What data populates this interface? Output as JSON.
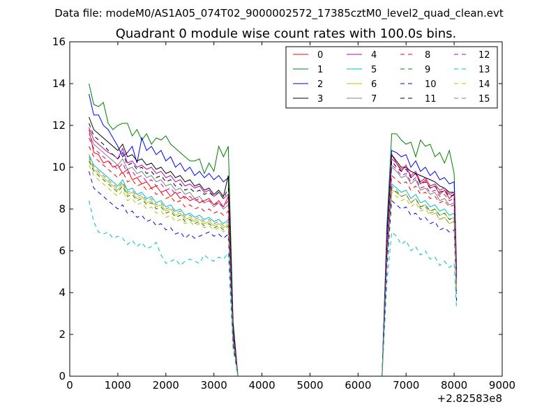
{
  "chart_data": {
    "type": "line",
    "suptitle": "Data file: modeM0/AS1A05_074T02_9000002572_17385cztM0_level2_quad_clean.evt",
    "title": "Quadrant 0 module wise count rates with 100.0s bins.",
    "xlabel": "",
    "ylabel": "",
    "x_offset_label": "+2.82583e8",
    "xlim": [
      0,
      9000
    ],
    "ylim": [
      0,
      16
    ],
    "x_ticks": [
      0,
      1000,
      2000,
      3000,
      4000,
      5000,
      6000,
      7000,
      8000,
      9000
    ],
    "y_ticks": [
      0,
      2,
      4,
      6,
      8,
      10,
      12,
      14,
      16
    ],
    "grid": false,
    "legend_position": "top-right",
    "legend_columns": 4,
    "x_segment1": [
      400,
      500,
      600,
      700,
      800,
      900,
      1000,
      1100,
      1200,
      1300,
      1400,
      1500,
      1600,
      1700,
      1800,
      1900,
      2000,
      2100,
      2200,
      2300,
      2400,
      2500,
      2600,
      2700,
      2800,
      2900,
      3000,
      3100,
      3200,
      3300,
      3400,
      3500
    ],
    "x_segment2": [
      6500,
      6600,
      6700,
      6800,
      6900,
      7000,
      7100,
      7200,
      7300,
      7400,
      7500,
      7600,
      7700,
      7800,
      7900,
      8000,
      8050
    ],
    "series": [
      {
        "name": "0",
        "color": "#ff0000",
        "dash": "solid",
        "values1": [
          11.8,
          10.7,
          10.6,
          10.2,
          10.3,
          10.0,
          10.1,
          9.7,
          9.9,
          9.4,
          9.5,
          9.2,
          9.3,
          9.0,
          9.1,
          8.8,
          8.9,
          8.6,
          8.8,
          8.5,
          8.6,
          8.4,
          8.5,
          8.3,
          8.4,
          8.5,
          8.2,
          8.4,
          8.1,
          8.6,
          2.0,
          0
        ],
        "values2": [
          0,
          6.5,
          10.6,
          10.2,
          9.8,
          10.1,
          9.5,
          9.7,
          9.2,
          9.4,
          9.0,
          9.1,
          8.7,
          8.9,
          8.5,
          8.7,
          4.8
        ]
      },
      {
        "name": "1",
        "color": "#008000",
        "dash": "solid",
        "values1": [
          14.0,
          13.0,
          12.9,
          13.1,
          12.1,
          11.8,
          12.0,
          12.1,
          12.1,
          11.5,
          11.8,
          11.3,
          11.6,
          11.1,
          11.4,
          11.3,
          11.5,
          11.1,
          10.9,
          10.7,
          10.5,
          10.3,
          10.3,
          10.4,
          9.7,
          10.2,
          9.8,
          11.0,
          10.5,
          11.0,
          2.6,
          0
        ],
        "values2": [
          0,
          7.2,
          11.6,
          11.6,
          11.3,
          11.1,
          11.2,
          10.5,
          11.3,
          11.0,
          11.1,
          10.5,
          10.7,
          10.2,
          10.8,
          9.7,
          5.2
        ]
      },
      {
        "name": "2",
        "color": "#0000ff",
        "dash": "solid",
        "values1": [
          13.5,
          12.5,
          12.5,
          12.0,
          11.8,
          11.4,
          11.0,
          10.5,
          10.7,
          11.0,
          10.2,
          11.4,
          10.8,
          11.0,
          10.6,
          10.8,
          10.3,
          10.5,
          10.0,
          10.2,
          9.8,
          10.0,
          9.6,
          9.8,
          9.5,
          9.7,
          9.4,
          9.6,
          9.3,
          9.5,
          2.3,
          0
        ],
        "values2": [
          0,
          6.9,
          10.8,
          10.7,
          10.5,
          10.6,
          10.0,
          10.3,
          9.8,
          10.0,
          9.6,
          9.8,
          9.4,
          9.5,
          9.2,
          9.3,
          4.9
        ]
      },
      {
        "name": "3",
        "color": "#000000",
        "dash": "solid",
        "values1": [
          12.4,
          11.8,
          11.6,
          11.4,
          11.2,
          11.0,
          10.8,
          11.1,
          10.5,
          10.6,
          10.3,
          10.4,
          10.1,
          10.2,
          9.9,
          10.0,
          9.7,
          9.8,
          9.5,
          9.6,
          9.3,
          9.4,
          9.1,
          9.2,
          8.9,
          9.0,
          8.7,
          8.9,
          8.6,
          9.6,
          2.5,
          0
        ],
        "values2": [
          0,
          6.6,
          10.6,
          10.3,
          10.0,
          10.0,
          9.8,
          9.7,
          9.6,
          9.5,
          9.4,
          9.3,
          9.1,
          9.0,
          8.8,
          8.8,
          4.6
        ]
      },
      {
        "name": "4",
        "color": "#bf00bf",
        "dash": "solid",
        "values1": [
          11.9,
          11.3,
          11.1,
          10.9,
          10.7,
          10.6,
          10.4,
          10.9,
          10.2,
          10.3,
          10.0,
          10.1,
          9.9,
          10.0,
          9.7,
          9.8,
          9.5,
          9.6,
          9.3,
          9.4,
          9.1,
          9.2,
          9.0,
          9.1,
          8.8,
          8.9,
          8.6,
          8.8,
          8.5,
          8.7,
          2.2,
          0
        ],
        "values2": [
          0,
          6.5,
          10.4,
          10.2,
          9.9,
          10.0,
          9.6,
          9.8,
          9.3,
          9.5,
          9.1,
          9.2,
          8.9,
          9.0,
          8.7,
          8.8,
          4.7
        ]
      },
      {
        "name": "5",
        "color": "#00bfbf",
        "dash": "solid",
        "values1": [
          10.6,
          10.1,
          9.9,
          9.7,
          9.5,
          9.3,
          9.1,
          9.4,
          8.9,
          9.0,
          8.7,
          8.8,
          8.5,
          8.6,
          8.3,
          8.4,
          8.1,
          8.2,
          7.9,
          8.0,
          7.7,
          7.8,
          7.6,
          7.7,
          7.5,
          7.6,
          7.4,
          7.5,
          7.3,
          7.5,
          1.8,
          0
        ],
        "values2": [
          0,
          5.8,
          9.2,
          9.0,
          8.8,
          8.9,
          8.5,
          8.7,
          8.3,
          8.4,
          8.1,
          8.2,
          7.9,
          8.0,
          7.7,
          7.8,
          4.2
        ]
      },
      {
        "name": "6",
        "color": "#bfbf00",
        "dash": "solid",
        "values1": [
          10.4,
          9.9,
          9.7,
          9.5,
          9.3,
          9.1,
          8.9,
          9.2,
          8.7,
          8.8,
          8.5,
          8.6,
          8.3,
          8.4,
          8.1,
          8.2,
          7.9,
          8.0,
          7.7,
          7.8,
          7.5,
          7.6,
          7.4,
          7.5,
          7.3,
          7.4,
          7.2,
          7.3,
          7.1,
          7.3,
          1.7,
          0
        ],
        "values2": [
          0,
          5.6,
          8.9,
          8.8,
          8.6,
          8.7,
          8.3,
          8.5,
          8.1,
          8.2,
          7.9,
          8.0,
          7.7,
          7.8,
          7.5,
          7.6,
          4.1
        ]
      },
      {
        "name": "7",
        "color": "#808080",
        "dash": "solid",
        "values1": [
          11.6,
          11.1,
          10.9,
          10.7,
          10.5,
          10.3,
          10.1,
          10.4,
          9.9,
          10.0,
          9.7,
          9.8,
          9.5,
          9.6,
          9.3,
          9.4,
          9.1,
          9.2,
          8.9,
          9.0,
          8.7,
          8.8,
          8.5,
          8.6,
          8.3,
          8.4,
          8.1,
          8.3,
          8.0,
          8.2,
          2.0,
          0
        ],
        "values2": [
          0,
          6.2,
          10.0,
          9.8,
          9.5,
          9.6,
          9.2,
          9.4,
          8.9,
          9.0,
          8.7,
          8.8,
          8.4,
          8.5,
          8.2,
          8.3,
          4.5
        ]
      },
      {
        "name": "8",
        "color": "#ff0000",
        "dash": "dashed",
        "values1": [
          11.0,
          10.5,
          10.3,
          10.1,
          9.9,
          9.7,
          9.5,
          9.8,
          9.3,
          9.4,
          9.1,
          9.2,
          8.9,
          9.0,
          8.7,
          8.8,
          8.5,
          8.6,
          8.3,
          8.4,
          8.1,
          8.2,
          8.0,
          8.1,
          7.9,
          8.0,
          7.8,
          7.9,
          7.7,
          7.9,
          1.9,
          0
        ],
        "values2": [
          0,
          6.0,
          9.6,
          9.4,
          9.2,
          9.3,
          8.9,
          9.1,
          8.7,
          8.8,
          8.5,
          8.6,
          8.3,
          8.4,
          8.1,
          8.2,
          4.4
        ]
      },
      {
        "name": "9",
        "color": "#008000",
        "dash": "dashed",
        "values1": [
          10.3,
          9.8,
          9.6,
          9.4,
          9.2,
          9.0,
          8.8,
          9.1,
          8.6,
          8.7,
          8.4,
          8.5,
          8.2,
          8.3,
          8.0,
          8.1,
          7.8,
          7.9,
          7.6,
          7.7,
          7.4,
          7.5,
          7.3,
          7.4,
          7.2,
          7.3,
          7.1,
          7.2,
          7.0,
          7.2,
          1.7,
          0
        ],
        "values2": [
          0,
          5.7,
          9.0,
          8.8,
          8.6,
          8.7,
          8.3,
          8.5,
          8.1,
          8.2,
          7.9,
          8.0,
          7.7,
          7.8,
          7.5,
          7.6,
          4.0
        ]
      },
      {
        "name": "10",
        "color": "#0000ff",
        "dash": "dashed",
        "values1": [
          9.8,
          9.0,
          8.8,
          8.6,
          8.4,
          8.2,
          8.0,
          8.2,
          7.8,
          7.9,
          7.6,
          7.7,
          7.4,
          7.5,
          7.2,
          7.3,
          7.0,
          7.1,
          6.8,
          6.9,
          6.6,
          6.8,
          6.6,
          6.7,
          6.8,
          6.9,
          6.7,
          6.8,
          6.6,
          6.8,
          1.5,
          0
        ],
        "values2": [
          0,
          5.2,
          8.4,
          8.2,
          8.0,
          8.1,
          7.7,
          7.8,
          7.5,
          7.6,
          7.3,
          7.4,
          7.0,
          7.1,
          6.9,
          7.0,
          3.6
        ]
      },
      {
        "name": "11",
        "color": "#000000",
        "dash": "dashed",
        "values1": [
          12.1,
          11.5,
          11.3,
          11.1,
          10.8,
          10.6,
          10.4,
          10.7,
          10.1,
          10.2,
          9.9,
          10.0,
          9.7,
          9.8,
          9.5,
          9.6,
          9.3,
          9.4,
          9.1,
          9.2,
          8.9,
          9.0,
          8.8,
          8.9,
          8.7,
          8.8,
          8.6,
          8.8,
          8.5,
          9.0,
          2.3,
          0
        ],
        "values2": [
          0,
          6.4,
          10.3,
          10.0,
          9.8,
          9.9,
          9.5,
          9.7,
          9.2,
          9.3,
          9.0,
          9.1,
          8.8,
          8.9,
          8.6,
          8.7,
          4.6
        ]
      },
      {
        "name": "12",
        "color": "#bf00bf",
        "dash": "dashed",
        "values1": [
          11.4,
          10.9,
          10.7,
          10.5,
          10.3,
          10.1,
          9.9,
          10.2,
          9.7,
          9.8,
          9.5,
          9.6,
          9.3,
          9.4,
          9.1,
          9.2,
          8.9,
          9.0,
          8.7,
          8.8,
          8.5,
          8.6,
          8.4,
          8.5,
          8.3,
          8.4,
          8.2,
          8.3,
          8.1,
          8.4,
          2.1,
          0
        ],
        "values2": [
          0,
          6.3,
          10.1,
          9.9,
          9.6,
          9.7,
          9.3,
          9.5,
          9.0,
          9.1,
          8.8,
          8.9,
          8.6,
          8.7,
          8.4,
          8.5,
          4.5
        ]
      },
      {
        "name": "13",
        "color": "#00bfbf",
        "dash": "dashed",
        "values1": [
          8.4,
          7.4,
          6.9,
          6.8,
          6.9,
          6.6,
          6.7,
          6.6,
          6.3,
          6.5,
          6.2,
          6.4,
          6.1,
          6.2,
          6.4,
          5.8,
          5.4,
          5.5,
          5.6,
          5.3,
          5.5,
          5.6,
          5.5,
          5.4,
          5.8,
          5.6,
          5.5,
          5.7,
          5.6,
          5.9,
          1.3,
          0
        ],
        "values2": [
          0,
          4.5,
          6.9,
          6.7,
          6.3,
          6.5,
          6.0,
          6.2,
          5.8,
          6.0,
          5.6,
          5.7,
          5.3,
          5.5,
          5.2,
          5.4,
          3.2
        ]
      },
      {
        "name": "14",
        "color": "#bfbf00",
        "dash": "dashed",
        "values1": [
          10.1,
          9.6,
          9.4,
          9.2,
          9.0,
          8.8,
          8.6,
          8.9,
          8.4,
          8.5,
          8.2,
          8.3,
          8.0,
          8.1,
          7.8,
          7.9,
          7.6,
          7.7,
          7.4,
          7.5,
          7.3,
          7.4,
          7.2,
          7.3,
          7.1,
          7.2,
          7.0,
          7.1,
          6.9,
          7.1,
          1.7,
          0
        ],
        "values2": [
          0,
          5.5,
          8.8,
          8.6,
          8.4,
          8.5,
          8.1,
          8.3,
          7.9,
          8.0,
          7.7,
          7.8,
          7.5,
          7.6,
          7.3,
          7.4,
          4.0
        ]
      },
      {
        "name": "15",
        "color": "#808080",
        "dash": "dashed",
        "values1": [
          10.5,
          10.0,
          9.8,
          9.6,
          9.4,
          9.2,
          9.0,
          9.3,
          8.8,
          8.9,
          8.6,
          8.7,
          8.4,
          8.5,
          8.2,
          8.3,
          8.0,
          8.1,
          7.8,
          7.9,
          7.6,
          7.7,
          7.5,
          7.6,
          7.4,
          7.5,
          7.3,
          7.4,
          7.2,
          7.4,
          1.8,
          0
        ],
        "values2": [
          0,
          5.6,
          9.1,
          8.9,
          8.6,
          8.7,
          8.3,
          8.5,
          8.0,
          8.1,
          7.8,
          7.9,
          7.5,
          7.6,
          7.3,
          7.4,
          4.1
        ]
      }
    ]
  }
}
